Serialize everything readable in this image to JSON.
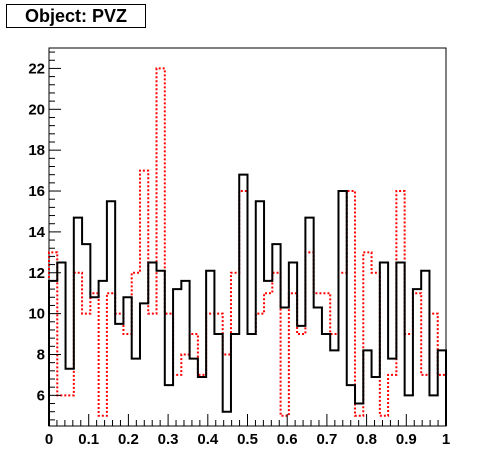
{
  "title": "Object: PVZ",
  "chart_data": {
    "type": "histogram",
    "title": "Object: PVZ",
    "xlabel": "",
    "ylabel": "",
    "xlim": [
      0,
      1
    ],
    "ylim": [
      4.5,
      23
    ],
    "bin_width": 0.02,
    "x_ticks": [
      "0",
      "0.1",
      "0.2",
      "0.3",
      "0.4",
      "0.5",
      "0.6",
      "0.7",
      "0.8",
      "0.9",
      "1"
    ],
    "y_ticks": [
      "6",
      "8",
      "10",
      "12",
      "14",
      "16",
      "18",
      "20",
      "22"
    ],
    "y_tick_values": [
      6,
      8,
      10,
      12,
      14,
      16,
      18,
      20,
      22
    ],
    "grid": false,
    "legend": "none",
    "series": [
      {
        "style": "solid",
        "color": "#000000",
        "values": [
          11.6,
          12.5,
          7.3,
          14.7,
          13.4,
          10.8,
          11.6,
          15.5,
          9.5,
          10.8,
          7.8,
          10.5,
          12.5,
          12.1,
          6.5,
          11.2,
          11.6,
          7.8,
          6.9,
          12.1,
          9.0,
          5.2,
          9.0,
          16.8,
          9.0,
          15.5,
          11.6,
          13.4,
          10.3,
          12.5,
          9.4,
          14.7,
          10.3,
          9.0,
          8.2,
          16.0,
          6.5,
          5.6,
          8.2,
          6.9,
          12.5,
          7.8,
          12.5,
          6.0,
          11.2,
          12.1,
          6.0,
          8.2
        ]
      },
      {
        "style": "dashed",
        "color": "#ff0000",
        "values": [
          13.0,
          6.0,
          6.0,
          12.0,
          10.0,
          11.0,
          5.0,
          11.0,
          10.0,
          9.0,
          12.0,
          17.0,
          10.0,
          22.0,
          10.0,
          7.0,
          8.0,
          9.0,
          7.0,
          10.0,
          10.0,
          8.0,
          12.0,
          16.0,
          9.0,
          10.0,
          11.0,
          12.0,
          5.0,
          11.0,
          9.0,
          13.0,
          11.0,
          11.0,
          9.0,
          12.0,
          16.0,
          5.0,
          13.0,
          12.0,
          5.0,
          7.0,
          16.0,
          9.0,
          11.0,
          7.0,
          10.0,
          7.0
        ]
      }
    ]
  }
}
